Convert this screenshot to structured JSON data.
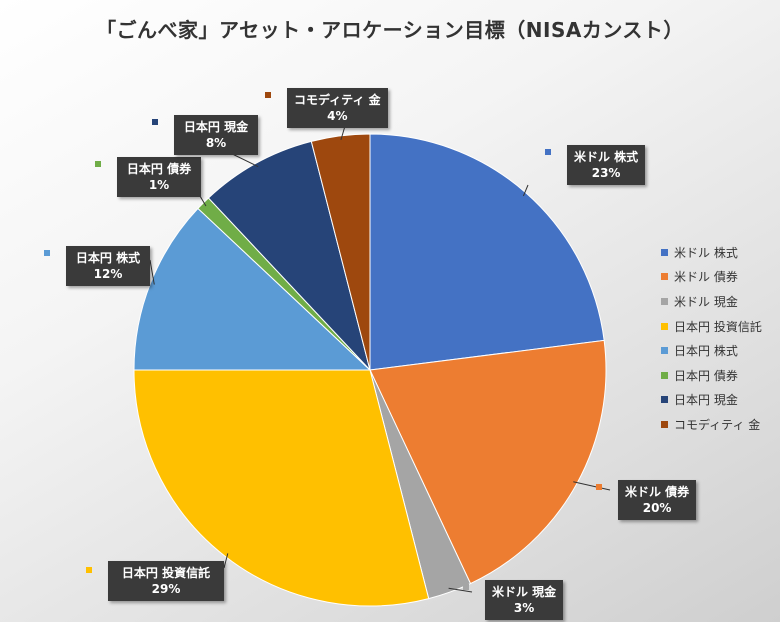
{
  "chart_data": {
    "type": "pie",
    "title": "「ごんべ家」アセット・アロケーション目標（NISAカンスト）",
    "legend_position": "right",
    "slices": [
      {
        "label": "米ドル 株式",
        "value": 23,
        "percent_label": "23%",
        "color": "#4472C4"
      },
      {
        "label": "米ドル 債券",
        "value": 20,
        "percent_label": "20%",
        "color": "#ED7D31"
      },
      {
        "label": "米ドル 現金",
        "value": 3,
        "percent_label": "3%",
        "color": "#A5A5A5"
      },
      {
        "label": "日本円 投資信託",
        "value": 29,
        "percent_label": "29%",
        "color": "#FFC000"
      },
      {
        "label": "日本円 株式",
        "value": 12,
        "percent_label": "12%",
        "color": "#5B9BD5"
      },
      {
        "label": "日本円 債券",
        "value": 1,
        "percent_label": "1%",
        "color": "#70AD47"
      },
      {
        "label": "日本円 現金",
        "value": 8,
        "percent_label": "8%",
        "color": "#264478"
      },
      {
        "label": "コモディティ 金",
        "value": 4,
        "percent_label": "4%",
        "color": "#9E480E"
      }
    ]
  }
}
